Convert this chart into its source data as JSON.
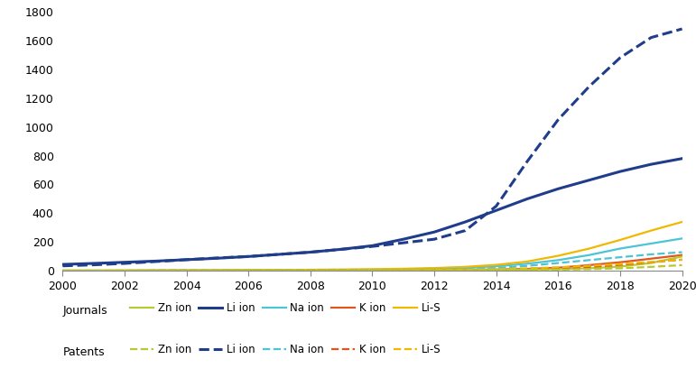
{
  "x": [
    2000,
    2001,
    2002,
    2003,
    2004,
    2005,
    2006,
    2007,
    2008,
    2009,
    2010,
    2011,
    2012,
    2013,
    2014,
    2015,
    2016,
    2017,
    2018,
    2019,
    2020
  ],
  "journals": {
    "Li_ion": [
      45,
      52,
      60,
      68,
      78,
      88,
      100,
      115,
      130,
      150,
      175,
      220,
      270,
      340,
      420,
      500,
      570,
      630,
      690,
      740,
      780
    ],
    "Na_ion": [
      2,
      2,
      2,
      3,
      3,
      4,
      5,
      5,
      6,
      7,
      9,
      12,
      16,
      22,
      32,
      50,
      75,
      110,
      155,
      190,
      225
    ],
    "K_ion": [
      2,
      2,
      2,
      2,
      2,
      2,
      2,
      3,
      3,
      3,
      4,
      5,
      6,
      8,
      10,
      14,
      22,
      40,
      60,
      85,
      110
    ],
    "Li_S": [
      2,
      2,
      3,
      3,
      4,
      5,
      6,
      7,
      8,
      10,
      12,
      15,
      20,
      28,
      42,
      65,
      105,
      155,
      215,
      280,
      340
    ],
    "Zn_ion": [
      1,
      1,
      1,
      2,
      2,
      2,
      2,
      2,
      3,
      3,
      3,
      4,
      5,
      6,
      7,
      9,
      12,
      18,
      30,
      55,
      100
    ]
  },
  "patents": {
    "Li_ion": [
      35,
      42,
      52,
      65,
      78,
      90,
      100,
      115,
      130,
      150,
      170,
      195,
      220,
      280,
      450,
      760,
      1050,
      1280,
      1480,
      1620,
      1680
    ],
    "Na_ion": [
      2,
      2,
      2,
      2,
      3,
      3,
      3,
      4,
      4,
      5,
      6,
      8,
      10,
      14,
      20,
      35,
      55,
      75,
      95,
      115,
      130
    ],
    "K_ion": [
      1,
      1,
      1,
      2,
      2,
      2,
      2,
      2,
      3,
      3,
      3,
      4,
      5,
      6,
      8,
      12,
      18,
      28,
      42,
      60,
      78
    ],
    "Li_S": [
      1,
      1,
      2,
      2,
      2,
      3,
      3,
      3,
      4,
      4,
      5,
      6,
      7,
      9,
      12,
      18,
      25,
      35,
      48,
      62,
      78
    ],
    "Zn_ion": [
      1,
      1,
      1,
      1,
      1,
      1,
      2,
      2,
      2,
      2,
      2,
      3,
      3,
      4,
      5,
      7,
      9,
      12,
      18,
      28,
      40
    ]
  },
  "colors": {
    "Li_ion": "#1f3d8a",
    "Na_ion": "#4cc4d4",
    "K_ion": "#e05520",
    "Li_S": "#f0b800",
    "Zn_ion": "#b8c832"
  },
  "ylim": [
    0,
    1800
  ],
  "yticks": [
    0,
    200,
    400,
    600,
    800,
    1000,
    1200,
    1400,
    1600,
    1800
  ],
  "x_ticks": [
    2000,
    2002,
    2004,
    2006,
    2008,
    2010,
    2012,
    2014,
    2016,
    2018,
    2020
  ],
  "background_color": "#ffffff",
  "legend_order": [
    "Zn_ion",
    "Li_ion",
    "Na_ion",
    "K_ion",
    "Li_S"
  ],
  "labels": {
    "Li_ion": "Li ion",
    "Na_ion": "Na ion",
    "K_ion": "K ion",
    "Li_S": "Li-S",
    "Zn_ion": "Zn ion"
  }
}
